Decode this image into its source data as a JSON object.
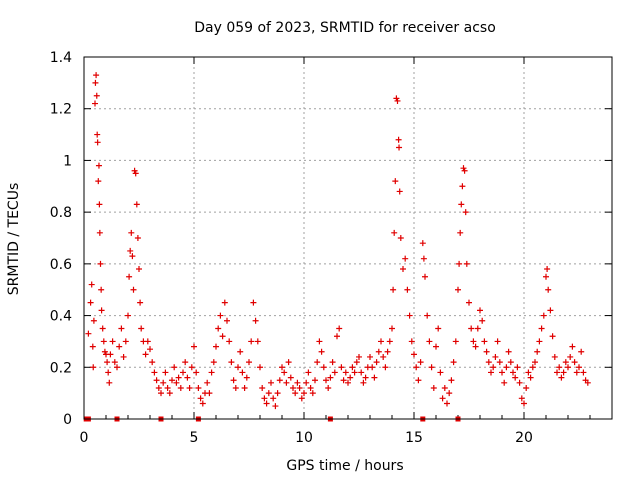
{
  "chart_data": {
    "type": "scatter",
    "title": "Day 059 of 2023, SRMTID for receiver acso",
    "xlabel": "GPS time / hours",
    "ylabel": "SRMTID / TECUs",
    "xlim": [
      0,
      24
    ],
    "ylim": [
      0,
      1.4
    ],
    "x_ticks": [
      0,
      5,
      10,
      15,
      20
    ],
    "y_ticks": [
      0,
      0.2,
      0.4,
      0.6,
      0.8,
      1,
      1.2,
      1.4
    ],
    "x_tick_labels": [
      "0",
      "5",
      "10",
      "15",
      "20"
    ],
    "y_tick_labels": [
      "0",
      "0.2",
      "0.4",
      "0.6",
      "0.8",
      "1",
      "1.2",
      "1.4"
    ],
    "grid": true,
    "marker": "plus",
    "color": "#e00000",
    "series": [
      {
        "name": "SRMTID",
        "points": [
          [
            0.2,
            0.33
          ],
          [
            0.3,
            0.45
          ],
          [
            0.35,
            0.52
          ],
          [
            0.4,
            0.28
          ],
          [
            0.42,
            0.2
          ],
          [
            0.45,
            0.38
          ],
          [
            0.5,
            1.22
          ],
          [
            0.52,
            1.3
          ],
          [
            0.55,
            1.33
          ],
          [
            0.58,
            1.25
          ],
          [
            0.6,
            1.1
          ],
          [
            0.62,
            1.07
          ],
          [
            0.65,
            0.92
          ],
          [
            0.68,
            0.98
          ],
          [
            0.7,
            0.83
          ],
          [
            0.72,
            0.72
          ],
          [
            0.75,
            0.6
          ],
          [
            0.78,
            0.5
          ],
          [
            0.8,
            0.42
          ],
          [
            0.85,
            0.35
          ],
          [
            0.9,
            0.3
          ],
          [
            0.95,
            0.26
          ],
          [
            1.0,
            0.25
          ],
          [
            1.05,
            0.22
          ],
          [
            1.1,
            0.18
          ],
          [
            1.15,
            0.14
          ],
          [
            1.2,
            0.25
          ],
          [
            1.3,
            0.3
          ],
          [
            1.4,
            0.22
          ],
          [
            1.5,
            0.2
          ],
          [
            1.6,
            0.28
          ],
          [
            1.7,
            0.35
          ],
          [
            1.8,
            0.24
          ],
          [
            1.9,
            0.3
          ],
          [
            2.0,
            0.4
          ],
          [
            2.05,
            0.55
          ],
          [
            2.1,
            0.65
          ],
          [
            2.15,
            0.72
          ],
          [
            2.2,
            0.63
          ],
          [
            2.25,
            0.5
          ],
          [
            2.3,
            0.96
          ],
          [
            2.35,
            0.95
          ],
          [
            2.4,
            0.83
          ],
          [
            2.45,
            0.7
          ],
          [
            2.5,
            0.58
          ],
          [
            2.55,
            0.45
          ],
          [
            2.6,
            0.35
          ],
          [
            2.7,
            0.3
          ],
          [
            2.8,
            0.25
          ],
          [
            2.9,
            0.3
          ],
          [
            3.0,
            0.27
          ],
          [
            3.1,
            0.22
          ],
          [
            3.2,
            0.18
          ],
          [
            3.3,
            0.15
          ],
          [
            3.4,
            0.12
          ],
          [
            3.5,
            0.1
          ],
          [
            3.6,
            0.14
          ],
          [
            3.7,
            0.18
          ],
          [
            3.8,
            0.12
          ],
          [
            3.9,
            0.1
          ],
          [
            4.0,
            0.15
          ],
          [
            4.1,
            0.2
          ],
          [
            4.2,
            0.14
          ],
          [
            4.3,
            0.16
          ],
          [
            4.4,
            0.12
          ],
          [
            4.5,
            0.18
          ],
          [
            4.6,
            0.22
          ],
          [
            4.7,
            0.16
          ],
          [
            4.8,
            0.12
          ],
          [
            4.9,
            0.2
          ],
          [
            5.0,
            0.28
          ],
          [
            5.1,
            0.18
          ],
          [
            5.2,
            0.12
          ],
          [
            5.3,
            0.08
          ],
          [
            5.4,
            0.06
          ],
          [
            5.5,
            0.1
          ],
          [
            5.6,
            0.14
          ],
          [
            5.7,
            0.1
          ],
          [
            5.8,
            0.18
          ],
          [
            5.9,
            0.22
          ],
          [
            6.0,
            0.28
          ],
          [
            6.1,
            0.35
          ],
          [
            6.2,
            0.4
          ],
          [
            6.3,
            0.32
          ],
          [
            6.4,
            0.45
          ],
          [
            6.5,
            0.38
          ],
          [
            6.6,
            0.3
          ],
          [
            6.7,
            0.22
          ],
          [
            6.8,
            0.15
          ],
          [
            6.9,
            0.12
          ],
          [
            7.0,
            0.2
          ],
          [
            7.1,
            0.26
          ],
          [
            7.2,
            0.18
          ],
          [
            7.3,
            0.12
          ],
          [
            7.4,
            0.16
          ],
          [
            7.5,
            0.22
          ],
          [
            7.6,
            0.3
          ],
          [
            7.7,
            0.45
          ],
          [
            7.8,
            0.38
          ],
          [
            7.9,
            0.3
          ],
          [
            8.0,
            0.2
          ],
          [
            8.1,
            0.12
          ],
          [
            8.2,
            0.08
          ],
          [
            8.3,
            0.06
          ],
          [
            8.4,
            0.1
          ],
          [
            8.5,
            0.14
          ],
          [
            8.6,
            0.08
          ],
          [
            8.7,
            0.05
          ],
          [
            8.8,
            0.1
          ],
          [
            8.9,
            0.15
          ],
          [
            9.0,
            0.2
          ],
          [
            9.1,
            0.18
          ],
          [
            9.2,
            0.14
          ],
          [
            9.3,
            0.22
          ],
          [
            9.4,
            0.16
          ],
          [
            9.5,
            0.12
          ],
          [
            9.6,
            0.1
          ],
          [
            9.7,
            0.14
          ],
          [
            9.8,
            0.12
          ],
          [
            9.9,
            0.08
          ],
          [
            10.0,
            0.1
          ],
          [
            10.1,
            0.14
          ],
          [
            10.2,
            0.18
          ],
          [
            10.3,
            0.12
          ],
          [
            10.4,
            0.1
          ],
          [
            10.5,
            0.15
          ],
          [
            10.6,
            0.22
          ],
          [
            10.7,
            0.3
          ],
          [
            10.8,
            0.26
          ],
          [
            10.9,
            0.2
          ],
          [
            11.0,
            0.15
          ],
          [
            11.1,
            0.12
          ],
          [
            11.2,
            0.16
          ],
          [
            11.3,
            0.22
          ],
          [
            11.4,
            0.18
          ],
          [
            11.5,
            0.32
          ],
          [
            11.6,
            0.35
          ],
          [
            11.7,
            0.2
          ],
          [
            11.8,
            0.15
          ],
          [
            11.9,
            0.18
          ],
          [
            12.0,
            0.14
          ],
          [
            12.1,
            0.16
          ],
          [
            12.2,
            0.2
          ],
          [
            12.3,
            0.18
          ],
          [
            12.4,
            0.22
          ],
          [
            12.5,
            0.24
          ],
          [
            12.6,
            0.18
          ],
          [
            12.7,
            0.14
          ],
          [
            12.8,
            0.16
          ],
          [
            12.9,
            0.2
          ],
          [
            13.0,
            0.24
          ],
          [
            13.1,
            0.2
          ],
          [
            13.2,
            0.16
          ],
          [
            13.3,
            0.22
          ],
          [
            13.4,
            0.26
          ],
          [
            13.5,
            0.3
          ],
          [
            13.6,
            0.24
          ],
          [
            13.7,
            0.2
          ],
          [
            13.8,
            0.26
          ],
          [
            13.9,
            0.3
          ],
          [
            14.0,
            0.35
          ],
          [
            14.05,
            0.5
          ],
          [
            14.1,
            0.72
          ],
          [
            14.15,
            0.92
          ],
          [
            14.2,
            1.24
          ],
          [
            14.25,
            1.23
          ],
          [
            14.3,
            1.08
          ],
          [
            14.32,
            1.05
          ],
          [
            14.35,
            0.88
          ],
          [
            14.4,
            0.7
          ],
          [
            14.5,
            0.58
          ],
          [
            14.6,
            0.62
          ],
          [
            14.7,
            0.5
          ],
          [
            14.8,
            0.4
          ],
          [
            14.9,
            0.3
          ],
          [
            15.0,
            0.25
          ],
          [
            15.1,
            0.2
          ],
          [
            15.2,
            0.15
          ],
          [
            15.3,
            0.22
          ],
          [
            15.4,
            0.68
          ],
          [
            15.45,
            0.62
          ],
          [
            15.5,
            0.55
          ],
          [
            15.6,
            0.4
          ],
          [
            15.7,
            0.3
          ],
          [
            15.8,
            0.2
          ],
          [
            15.9,
            0.12
          ],
          [
            16.0,
            0.28
          ],
          [
            16.1,
            0.35
          ],
          [
            16.2,
            0.18
          ],
          [
            16.3,
            0.08
          ],
          [
            16.4,
            0.12
          ],
          [
            16.5,
            0.06
          ],
          [
            16.6,
            0.1
          ],
          [
            16.7,
            0.15
          ],
          [
            16.8,
            0.22
          ],
          [
            16.9,
            0.3
          ],
          [
            17.0,
            0.5
          ],
          [
            17.05,
            0.6
          ],
          [
            17.1,
            0.72
          ],
          [
            17.15,
            0.83
          ],
          [
            17.2,
            0.9
          ],
          [
            17.25,
            0.97
          ],
          [
            17.3,
            0.96
          ],
          [
            17.35,
            0.8
          ],
          [
            17.4,
            0.6
          ],
          [
            17.5,
            0.45
          ],
          [
            17.6,
            0.35
          ],
          [
            17.7,
            0.3
          ],
          [
            17.8,
            0.28
          ],
          [
            17.9,
            0.35
          ],
          [
            18.0,
            0.42
          ],
          [
            18.1,
            0.38
          ],
          [
            18.2,
            0.3
          ],
          [
            18.3,
            0.26
          ],
          [
            18.4,
            0.22
          ],
          [
            18.5,
            0.18
          ],
          [
            18.6,
            0.2
          ],
          [
            18.7,
            0.24
          ],
          [
            18.8,
            0.3
          ],
          [
            18.9,
            0.22
          ],
          [
            19.0,
            0.18
          ],
          [
            19.1,
            0.14
          ],
          [
            19.2,
            0.2
          ],
          [
            19.3,
            0.26
          ],
          [
            19.4,
            0.22
          ],
          [
            19.5,
            0.18
          ],
          [
            19.6,
            0.16
          ],
          [
            19.7,
            0.2
          ],
          [
            19.8,
            0.14
          ],
          [
            19.9,
            0.08
          ],
          [
            20.0,
            0.06
          ],
          [
            20.1,
            0.12
          ],
          [
            20.2,
            0.18
          ],
          [
            20.3,
            0.16
          ],
          [
            20.4,
            0.2
          ],
          [
            20.5,
            0.22
          ],
          [
            20.6,
            0.26
          ],
          [
            20.7,
            0.3
          ],
          [
            20.8,
            0.35
          ],
          [
            20.9,
            0.4
          ],
          [
            21.0,
            0.55
          ],
          [
            21.05,
            0.58
          ],
          [
            21.1,
            0.5
          ],
          [
            21.2,
            0.42
          ],
          [
            21.3,
            0.32
          ],
          [
            21.4,
            0.24
          ],
          [
            21.5,
            0.18
          ],
          [
            21.6,
            0.2
          ],
          [
            21.7,
            0.16
          ],
          [
            21.8,
            0.18
          ],
          [
            21.9,
            0.22
          ],
          [
            22.0,
            0.2
          ],
          [
            22.1,
            0.24
          ],
          [
            22.2,
            0.28
          ],
          [
            22.3,
            0.22
          ],
          [
            22.4,
            0.18
          ],
          [
            22.5,
            0.2
          ],
          [
            22.6,
            0.26
          ],
          [
            22.7,
            0.18
          ],
          [
            22.8,
            0.15
          ],
          [
            22.9,
            0.14
          ]
        ]
      }
    ],
    "baseline_markers_x": [
      0.1,
      0.2,
      1.5,
      3.5,
      5.2,
      11.2,
      15.4,
      17.0
    ]
  }
}
